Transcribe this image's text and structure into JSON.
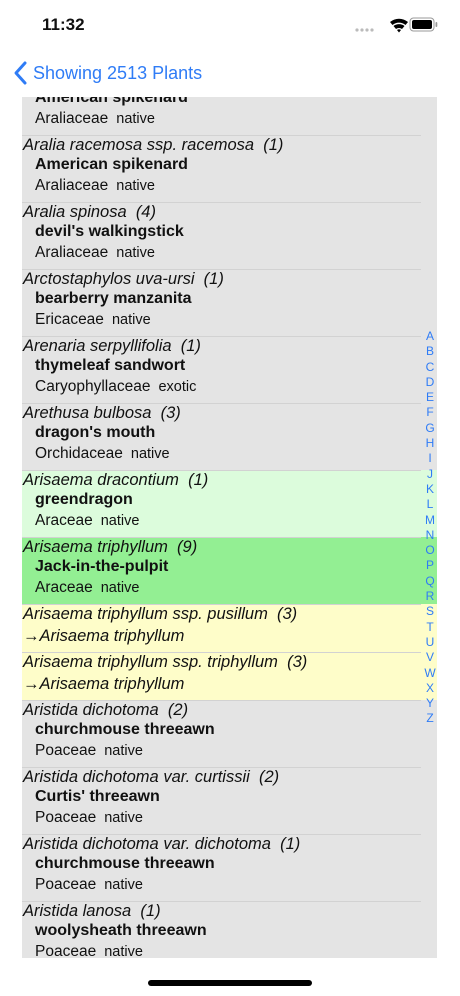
{
  "status_bar": {
    "time": "11:32"
  },
  "nav": {
    "back_title": "Showing 2513 Plants"
  },
  "rows": [
    {
      "common": "American spikenard",
      "family": "Araliaceae",
      "status": "native"
    },
    {
      "scientific": "Aralia racemosa ssp. racemosa",
      "count": "(1)",
      "common": "American spikenard",
      "family": "Araliaceae",
      "status": "native"
    },
    {
      "scientific": "Aralia spinosa",
      "count": "(4)",
      "common": "devil's walkingstick",
      "family": "Araliaceae",
      "status": "native"
    },
    {
      "scientific": "Arctostaphylos uva-ursi",
      "count": "(1)",
      "common": "bearberry manzanita",
      "family": "Ericaceae",
      "status": "native"
    },
    {
      "scientific": "Arenaria serpyllifolia",
      "count": "(1)",
      "common": "thymeleaf sandwort",
      "family": "Caryophyllaceae",
      "status": "exotic"
    },
    {
      "scientific": "Arethusa bulbosa",
      "count": "(3)",
      "common": "dragon's mouth",
      "family": "Orchidaceae",
      "status": "native"
    },
    {
      "scientific": "Arisaema dracontium",
      "count": "(1)",
      "common": "greendragon",
      "family": "Araceae",
      "status": "native",
      "color": "#dcfcdc"
    },
    {
      "scientific": "Arisaema triphyllum",
      "count": "(9)",
      "common": "Jack-in-the-pulpit",
      "family": "Araceae",
      "status": "native",
      "color": "#93ef93"
    },
    {
      "scientific": "Arisaema triphyllum ssp. pusillum",
      "count": "(3)",
      "synonym_of": "→Arisaema triphyllum",
      "color": "#fefdc9"
    },
    {
      "scientific": "Arisaema triphyllum ssp. triphyllum",
      "count": "(3)",
      "synonym_of": "→Arisaema triphyllum",
      "color": "#fefdc9"
    },
    {
      "scientific": "Aristida dichotoma",
      "count": "(2)",
      "common": "churchmouse threeawn",
      "family": "Poaceae",
      "status": "native"
    },
    {
      "scientific": "Aristida dichotoma var. curtissii",
      "count": "(2)",
      "common": "Curtis' threeawn",
      "family": "Poaceae",
      "status": "native"
    },
    {
      "scientific": "Aristida dichotoma var. dichotoma",
      "count": "(1)",
      "common": "churchmouse threeawn",
      "family": "Poaceae",
      "status": "native"
    },
    {
      "scientific": "Aristida lanosa",
      "count": "(1)",
      "common": "woolysheath threeawn",
      "family": "Poaceae",
      "status": "native"
    }
  ],
  "index": [
    "A",
    "B",
    "C",
    "D",
    "E",
    "F",
    "G",
    "H",
    "I",
    "J",
    "K",
    "L",
    "M",
    "N",
    "O",
    "P",
    "Q",
    "R",
    "S",
    "T",
    "U",
    "V",
    "W",
    "X",
    "Y",
    "Z"
  ]
}
